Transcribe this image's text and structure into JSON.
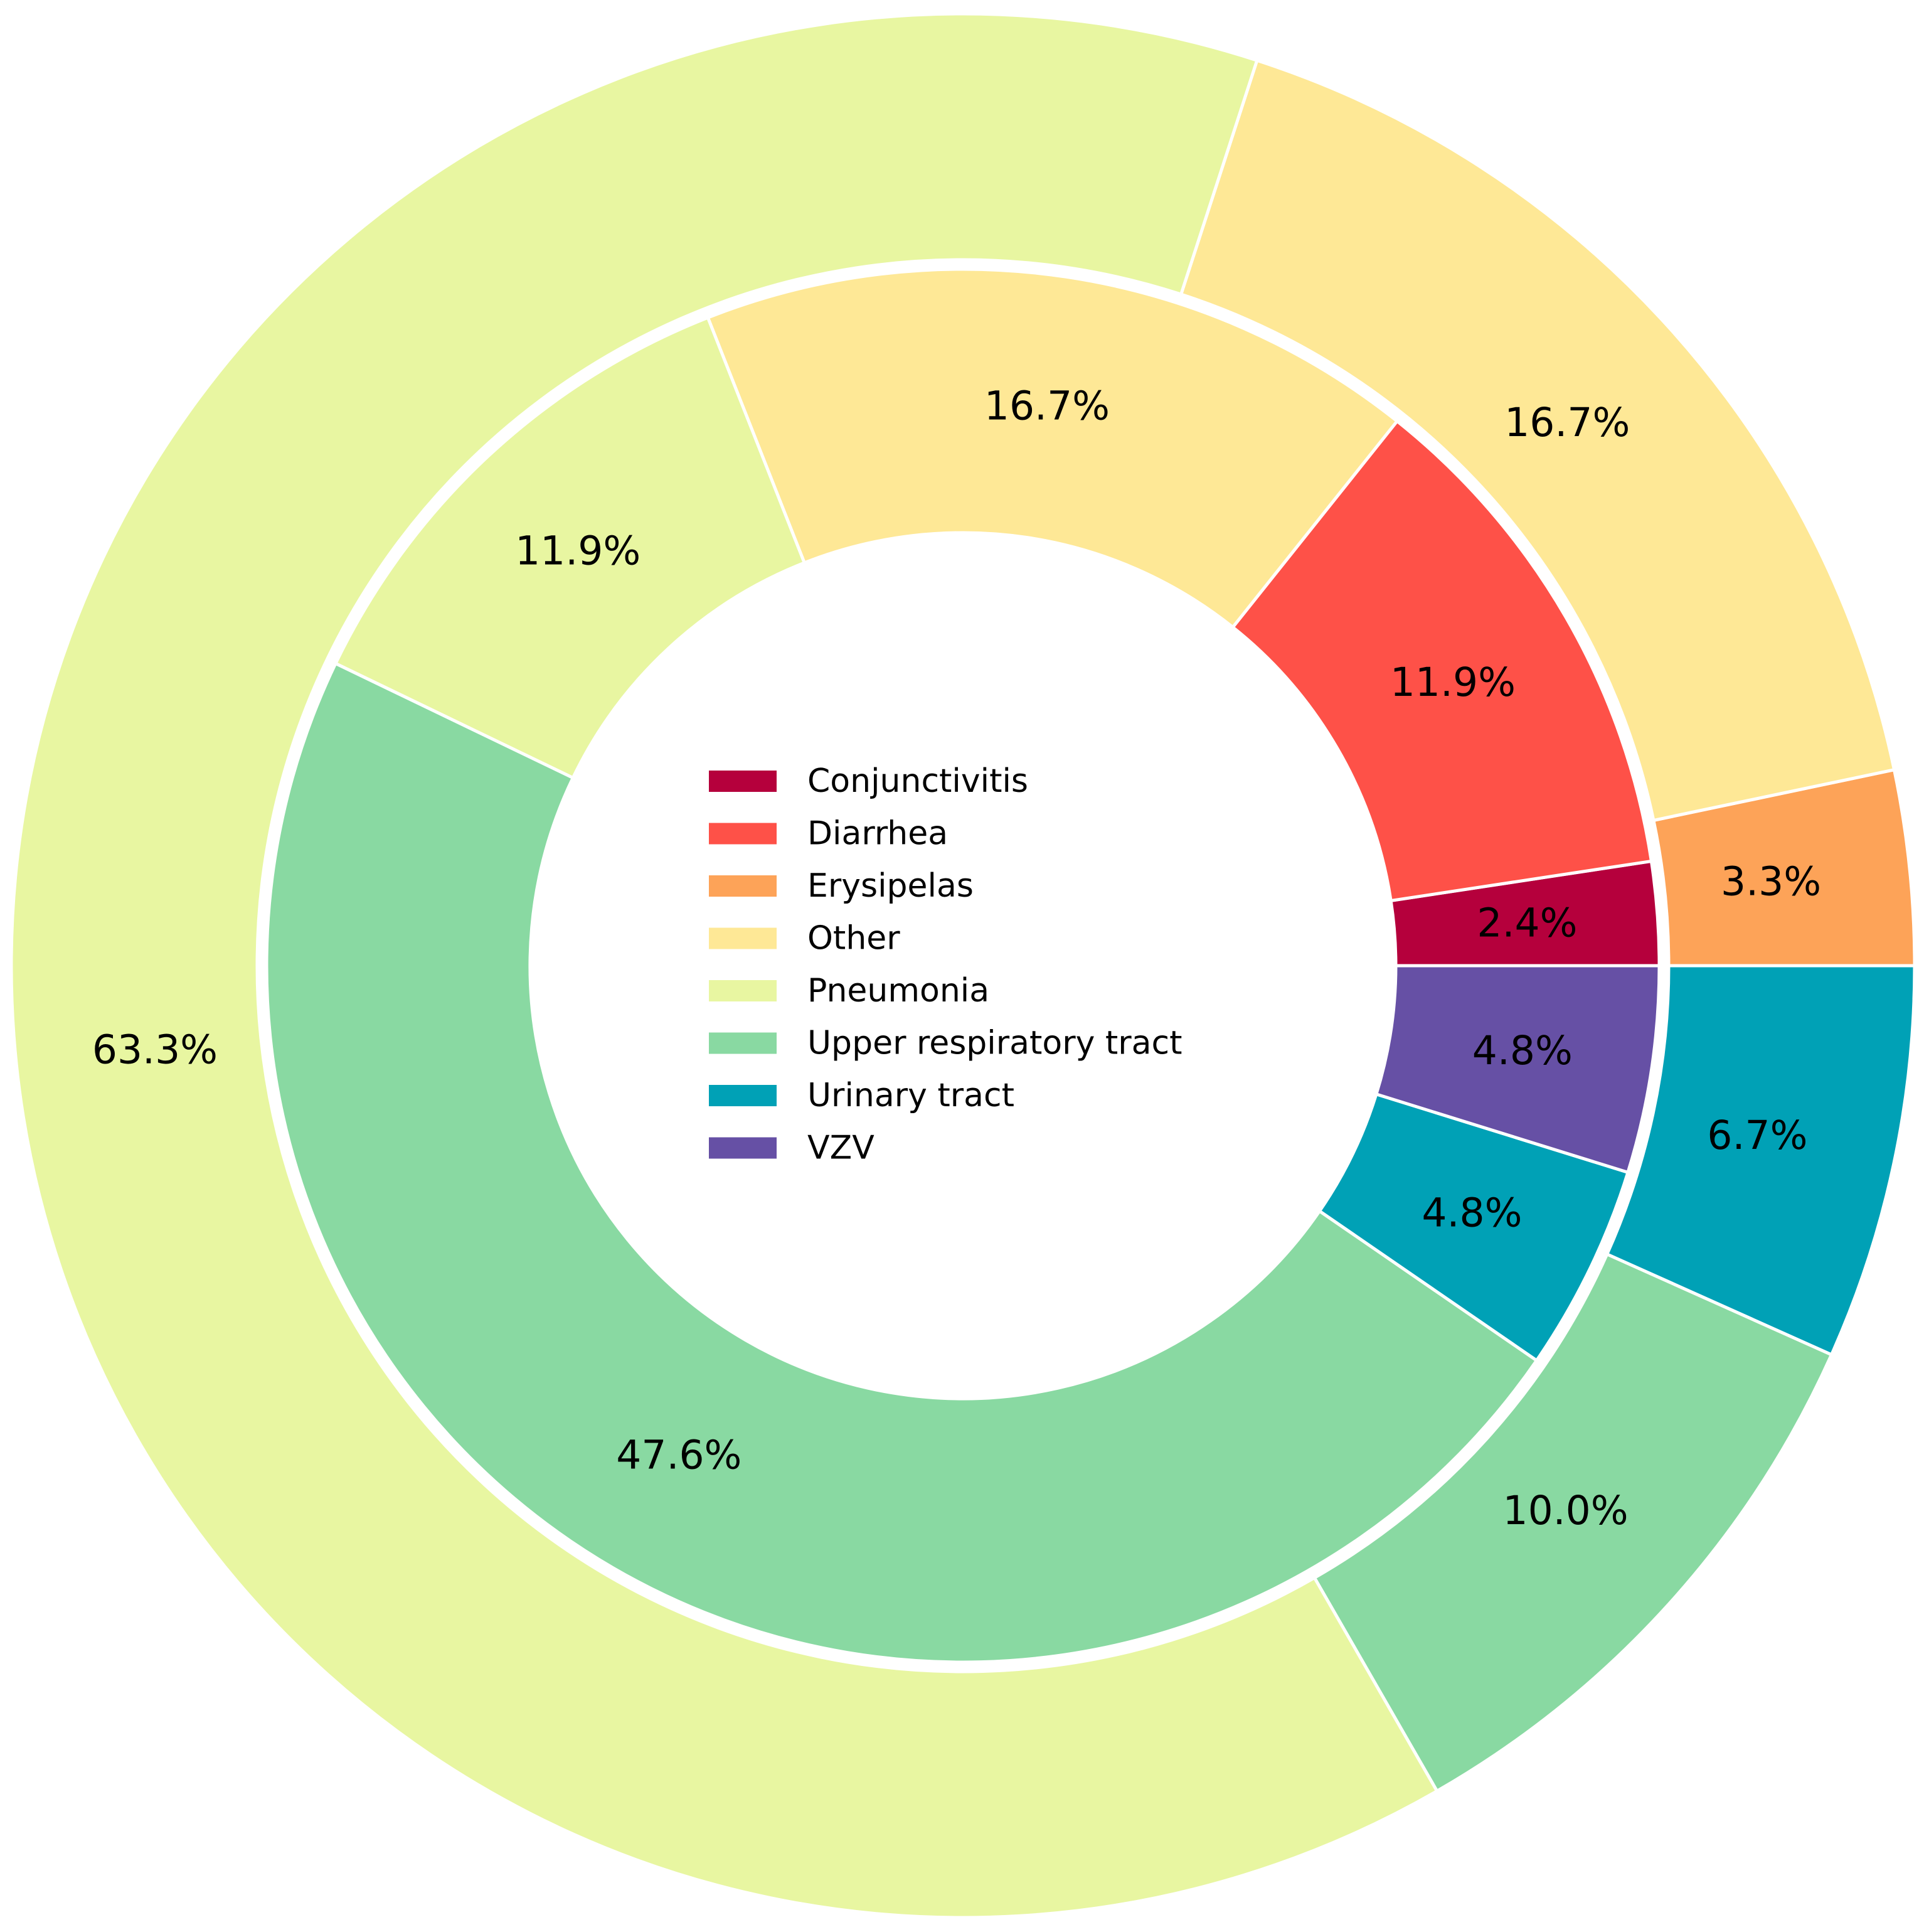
{
  "chart_data": {
    "type": "pie",
    "variant": "nested-donut",
    "legend_position": "center",
    "legend": [
      {
        "label": "Conjunctivitis",
        "color": "#b5003c"
      },
      {
        "label": "Diarrhea",
        "color": "#fe5148"
      },
      {
        "label": "Erysipelas",
        "color": "#fda358"
      },
      {
        "label": "Other",
        "color": "#fee896"
      },
      {
        "label": "Pneumonia",
        "color": "#e8f6a1"
      },
      {
        "label": "Upper respiratory tract",
        "color": "#89d9a2"
      },
      {
        "label": "Urinary tract",
        "color": "#00a1b6"
      },
      {
        "label": "VZV",
        "color": "#6650a5"
      }
    ],
    "rings": [
      {
        "ring": "outer",
        "slices": [
          {
            "category": "Erysipelas",
            "value": 3.3,
            "label": "3.3%"
          },
          {
            "category": "Other",
            "value": 16.7,
            "label": "16.7%"
          },
          {
            "category": "Pneumonia",
            "value": 63.3,
            "label": "63.3%"
          },
          {
            "category": "Upper respiratory tract",
            "value": 10.0,
            "label": "10.0%"
          },
          {
            "category": "Urinary tract",
            "value": 6.7,
            "label": "6.7%"
          }
        ]
      },
      {
        "ring": "inner",
        "slices": [
          {
            "category": "Conjunctivitis",
            "value": 2.4,
            "label": "2.4%"
          },
          {
            "category": "Diarrhea",
            "value": 11.9,
            "label": "11.9%"
          },
          {
            "category": "Other",
            "value": 16.7,
            "label": "16.7%"
          },
          {
            "category": "Pneumonia",
            "value": 11.9,
            "label": "11.9%"
          },
          {
            "category": "Upper respiratory tract",
            "value": 47.6,
            "label": "47.6%"
          },
          {
            "category": "Urinary tract",
            "value": 4.8,
            "label": "4.8%"
          },
          {
            "category": "VZV",
            "value": 4.8,
            "label": "4.8%"
          }
        ]
      }
    ]
  }
}
